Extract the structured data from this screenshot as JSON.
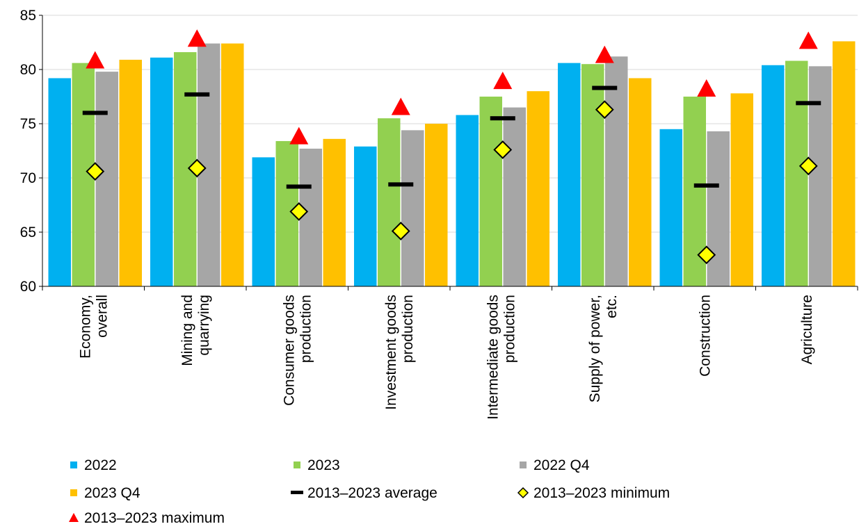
{
  "chart_data": {
    "type": "bar",
    "title": "",
    "xlabel": "",
    "ylabel": "",
    "ylim": [
      60,
      85
    ],
    "yticks": [
      60,
      65,
      70,
      75,
      80,
      85
    ],
    "grid": true,
    "legend_position": "bottom",
    "categories": [
      [
        "Economy,",
        "overall"
      ],
      [
        "Mining and",
        "quarrying"
      ],
      [
        "Consumer goods",
        "production"
      ],
      [
        "Investment goods",
        "production"
      ],
      [
        "Intermediate goods",
        "production"
      ],
      [
        "Supply of power,",
        "etc."
      ],
      [
        "Construction"
      ],
      [
        "Agriculture"
      ]
    ],
    "series": [
      {
        "name": "2022",
        "kind": "bar",
        "color": "#00b0f0",
        "values": [
          79.2,
          81.1,
          71.9,
          72.9,
          75.8,
          80.6,
          74.5,
          80.4
        ]
      },
      {
        "name": "2023",
        "kind": "bar",
        "color": "#92d050",
        "values": [
          80.6,
          81.6,
          73.4,
          75.5,
          77.5,
          80.5,
          77.5,
          80.8
        ]
      },
      {
        "name": "2022 Q4",
        "kind": "bar",
        "color": "#a6a6a6",
        "values": [
          79.8,
          82.4,
          72.7,
          74.4,
          76.5,
          81.2,
          74.3,
          80.3
        ]
      },
      {
        "name": "2023 Q4",
        "kind": "bar",
        "color": "#ffc000",
        "values": [
          80.9,
          82.4,
          73.6,
          75.0,
          78.0,
          79.2,
          77.8,
          82.6
        ]
      },
      {
        "name": "2013–2023 average",
        "kind": "dash",
        "color": "#000000",
        "values": [
          76.0,
          77.7,
          69.2,
          69.4,
          75.5,
          78.3,
          69.3,
          76.9
        ]
      },
      {
        "name": "2013–2023 minimum",
        "kind": "diamond",
        "color": "#ffff00",
        "values": [
          70.6,
          70.9,
          66.9,
          65.1,
          72.6,
          76.3,
          62.9,
          71.1
        ]
      },
      {
        "name": "2013–2023 maximum",
        "kind": "triangle",
        "color": "#ff0000",
        "values": [
          80.9,
          82.9,
          73.9,
          76.6,
          79.0,
          81.4,
          78.3,
          82.7
        ]
      }
    ]
  }
}
